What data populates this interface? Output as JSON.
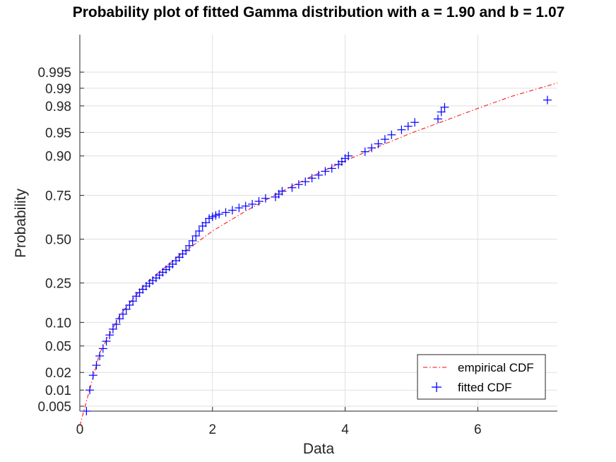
{
  "chart_data": {
    "type": "scatter",
    "title": "Probability plot of fitted Gamma distribution with a = 1.90 and b = 1.07",
    "xlabel": "Data",
    "ylabel": "Probability",
    "xlim": [
      0,
      7.2
    ],
    "x_ticks": [
      0,
      2,
      4,
      6
    ],
    "x_tick_labels": [
      "0",
      "2",
      "4",
      "6"
    ],
    "y_scale": "probability",
    "y_ticks": [
      0.005,
      0.01,
      0.02,
      0.05,
      0.1,
      0.25,
      0.5,
      0.75,
      0.9,
      0.95,
      0.98,
      0.99,
      0.995
    ],
    "y_tick_labels": [
      "0.005",
      "0.01",
      "0.02",
      "0.05",
      "0.10",
      "0.25",
      "0.50",
      "0.75",
      "0.90",
      "0.95",
      "0.98",
      "0.99",
      "0.995"
    ],
    "grid": true,
    "legend_position": "bottom-right",
    "series": [
      {
        "name": "empirical CDF",
        "style": "dash-dot line",
        "color": "#ff0000",
        "x": [
          0,
          0.3,
          0.6,
          1.0,
          1.5,
          2.0,
          2.5,
          3.0,
          3.5,
          4.0,
          4.5,
          5.0,
          5.5,
          6.0,
          6.5,
          7.2
        ],
        "y": [
          0.002,
          0.04,
          0.12,
          0.25,
          0.4,
          0.55,
          0.667,
          0.762,
          0.834,
          0.886,
          0.923,
          0.949,
          0.966,
          0.978,
          0.986,
          0.992
        ]
      },
      {
        "name": "fitted CDF",
        "style": "plus markers",
        "color": "#0000ff",
        "x": [
          0.1,
          0.15,
          0.2,
          0.25,
          0.3,
          0.35,
          0.4,
          0.45,
          0.5,
          0.55,
          0.6,
          0.65,
          0.7,
          0.75,
          0.8,
          0.85,
          0.9,
          0.95,
          1.0,
          1.05,
          1.1,
          1.15,
          1.2,
          1.25,
          1.3,
          1.35,
          1.4,
          1.45,
          1.5,
          1.55,
          1.6,
          1.65,
          1.7,
          1.75,
          1.8,
          1.85,
          1.9,
          1.95,
          2.0,
          2.05,
          2.1,
          2.2,
          2.3,
          2.4,
          2.5,
          2.6,
          2.7,
          2.8,
          2.95,
          3.0,
          3.05,
          3.2,
          3.3,
          3.4,
          3.5,
          3.6,
          3.7,
          3.8,
          3.9,
          3.95,
          4.0,
          4.05,
          4.3,
          4.4,
          4.5,
          4.6,
          4.7,
          4.85,
          4.95,
          5.05,
          5.4,
          5.45,
          5.5,
          7.05
        ],
        "y": [
          0.004,
          0.01,
          0.018,
          0.026,
          0.036,
          0.046,
          0.058,
          0.07,
          0.083,
          0.095,
          0.11,
          0.124,
          0.14,
          0.155,
          0.17,
          0.19,
          0.205,
          0.22,
          0.235,
          0.248,
          0.262,
          0.275,
          0.29,
          0.305,
          0.32,
          0.335,
          0.35,
          0.37,
          0.39,
          0.41,
          0.43,
          0.46,
          0.49,
          0.52,
          0.55,
          0.58,
          0.6,
          0.625,
          0.635,
          0.643,
          0.65,
          0.66,
          0.672,
          0.685,
          0.695,
          0.705,
          0.72,
          0.735,
          0.742,
          0.756,
          0.77,
          0.786,
          0.8,
          0.812,
          0.826,
          0.838,
          0.852,
          0.862,
          0.875,
          0.884,
          0.893,
          0.9,
          0.911,
          0.92,
          0.929,
          0.938,
          0.946,
          0.954,
          0.959,
          0.964,
          0.968,
          0.975,
          0.979,
          0.984
        ]
      }
    ]
  }
}
